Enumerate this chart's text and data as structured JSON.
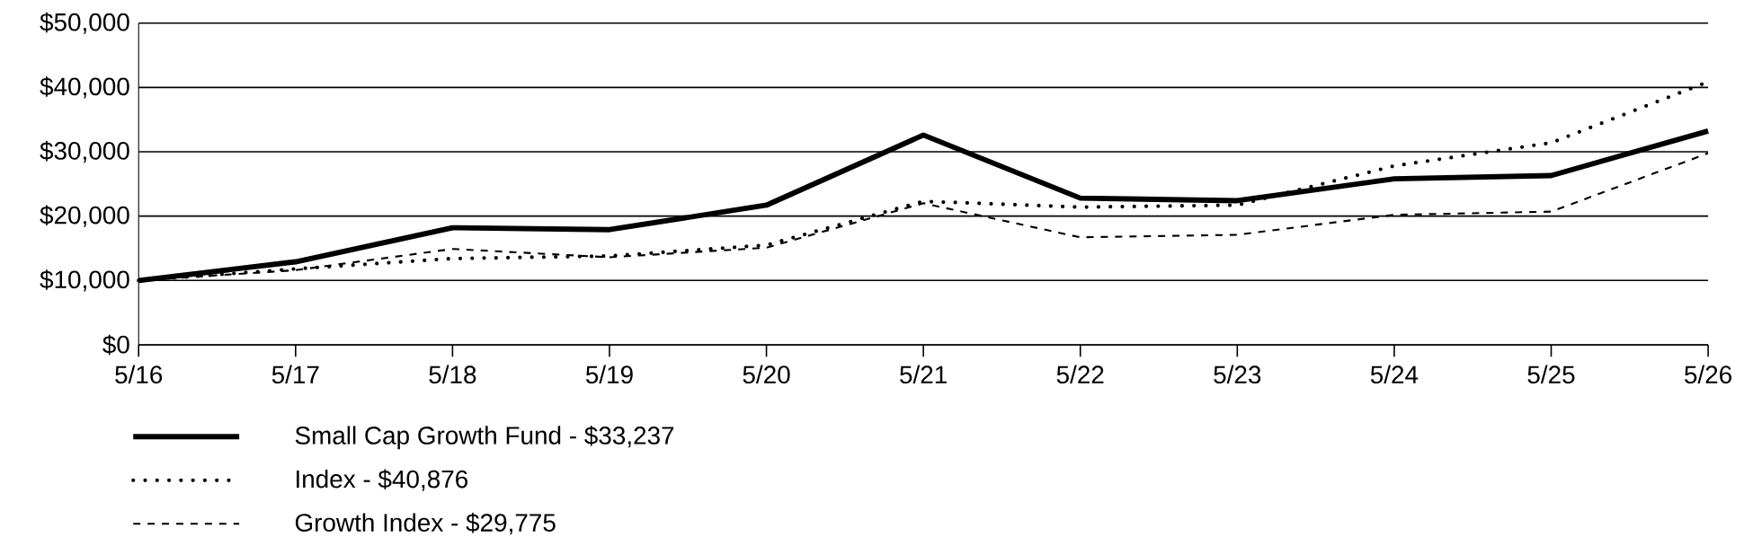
{
  "chart_data": {
    "type": "line",
    "categories": [
      "5/16",
      "5/17",
      "5/18",
      "5/19",
      "5/20",
      "5/21",
      "5/22",
      "5/23",
      "5/24",
      "5/25",
      "5/26"
    ],
    "series": [
      {
        "name": "Small Cap Growth Fund - $33,237",
        "color": "#000000",
        "line_style": "solid",
        "values": [
          10000,
          12900,
          18200,
          17900,
          21700,
          32600,
          22800,
          22400,
          25800,
          26300,
          33237
        ]
      },
      {
        "name": "Index - $40,876",
        "color": "#000000",
        "line_style": "dotted",
        "values": [
          10000,
          11800,
          13400,
          13800,
          15500,
          22300,
          21400,
          21700,
          27800,
          31400,
          40876
        ]
      },
      {
        "name": "Growth Index - $29,775",
        "color": "#000000",
        "line_style": "dashed",
        "values": [
          10000,
          11600,
          14900,
          13600,
          15100,
          22000,
          16700,
          17100,
          20200,
          20700,
          29775
        ]
      }
    ],
    "ylim": [
      0,
      50000
    ],
    "yticks": [
      {
        "value": 0,
        "label": "$0"
      },
      {
        "value": 10000,
        "label": "$10,000"
      },
      {
        "value": 20000,
        "label": "$20,000"
      },
      {
        "value": 30000,
        "label": "$30,000"
      },
      {
        "value": 40000,
        "label": "$40,000"
      },
      {
        "value": 50000,
        "label": "$50,000"
      }
    ],
    "grid": "y",
    "legend": "bottom"
  }
}
